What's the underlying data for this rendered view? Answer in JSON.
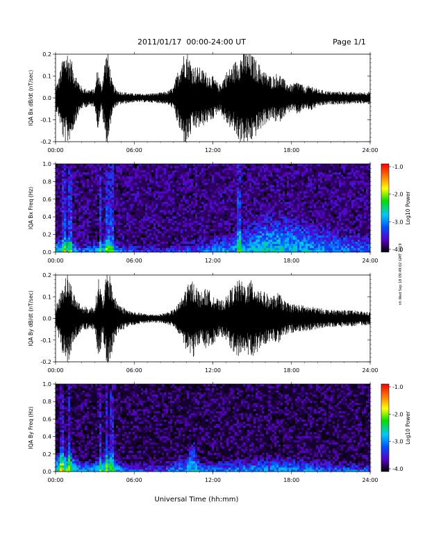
{
  "header": {
    "date_range": "2011/01/17  00:00-24:00 UT",
    "page": "Page 1/1"
  },
  "side_note": "nh Wed Sep 18 09:49:02 GMT 2019",
  "footer": {
    "xlabel": "Universal Time (hh:mm)"
  },
  "colors": {
    "trace": "#000000",
    "spec_background": "#1a0a3c",
    "colorbar": [
      "#ff0000",
      "#ff8000",
      "#ffff00",
      "#00e000",
      "#00c8ff",
      "#0050ff",
      "#5a00c8",
      "#000000"
    ]
  },
  "colorbar_ticks": [
    "-1.0",
    "-2.0",
    "-3.0",
    "-4.0"
  ],
  "colorbar_label": "Log10 Power",
  "chart_data": [
    {
      "type": "line",
      "ylabel": "IQA Bx dB/dt (nT/sec)",
      "ylim": [
        -0.2,
        0.2
      ],
      "yticks": [
        "0.2",
        "0.1",
        "0.0",
        "-0.1",
        "-0.2"
      ],
      "xticks": [
        "00:00",
        "06:00",
        "12:00",
        "18:00",
        "24:00"
      ],
      "xlim_hours": [
        0,
        24
      ],
      "series": [
        {
          "amplitude_envelope": {
            "x_hours": [
              0,
              0.2,
              0.6,
              0.9,
              1.3,
              1.6,
              2.0,
              2.5,
              3.0,
              3.2,
              3.5,
              3.8,
              4.0,
              4.3,
              4.6,
              5.0,
              5.5,
              6.0,
              7.0,
              8.0,
              8.5,
              9.0,
              9.3,
              9.7,
              10.0,
              10.5,
              11.0,
              11.5,
              12.0,
              12.5,
              13.0,
              13.5,
              14.0,
              14.5,
              15.0,
              15.5,
              16.0,
              16.5,
              17.0,
              17.5,
              18.0,
              18.5,
              19.0,
              19.5,
              20.0,
              21.0,
              22.0,
              23.0,
              24.0
            ],
            "half_range_nT_s": [
              0.06,
              0.08,
              0.2,
              0.22,
              0.16,
              0.1,
              0.05,
              0.04,
              0.04,
              0.15,
              0.05,
              0.2,
              0.22,
              0.08,
              0.04,
              0.03,
              0.025,
              0.02,
              0.02,
              0.025,
              0.03,
              0.05,
              0.12,
              0.2,
              0.22,
              0.15,
              0.14,
              0.12,
              0.1,
              0.06,
              0.12,
              0.15,
              0.2,
              0.22,
              0.2,
              0.16,
              0.12,
              0.1,
              0.12,
              0.08,
              0.06,
              0.08,
              0.05,
              0.06,
              0.04,
              0.03,
              0.03,
              0.025,
              0.03
            ]
          }
        }
      ]
    },
    {
      "type": "heatmap",
      "ylabel": "IQA Bx Freq (Hz)",
      "ylim": [
        0.0,
        1.0
      ],
      "yticks": [
        "1.0",
        "0.8",
        "0.6",
        "0.4",
        "0.2",
        "0.0"
      ],
      "xticks": [
        "00:00",
        "06:00",
        "12:00",
        "18:00",
        "24:00"
      ],
      "xlim_hours": [
        0,
        24
      ],
      "zlabel": "Log10 Power",
      "zlim": [
        -4.0,
        -1.0
      ],
      "background_log_power": -3.8,
      "low_freq_band": {
        "x_hours": [
          0,
          1,
          2,
          3,
          4,
          5,
          6,
          8,
          10,
          12,
          14,
          16,
          18,
          20,
          22,
          24
        ],
        "log_power_at_0Hz": [
          -2.6,
          -2.4,
          -3.0,
          -2.8,
          -2.5,
          -3.0,
          -3.2,
          -3.3,
          -3.2,
          -3.0,
          -2.8,
          -2.6,
          -2.7,
          -2.9,
          -3.0,
          -3.1
        ],
        "top_freq_Hz": [
          0.1,
          0.12,
          0.06,
          0.08,
          0.12,
          0.06,
          0.05,
          0.05,
          0.08,
          0.12,
          0.18,
          0.3,
          0.3,
          0.22,
          0.18,
          0.15
        ]
      },
      "vertical_streaks_hours": [
        0.6,
        1.1,
        3.4,
        4.0,
        4.3,
        14.0
      ]
    },
    {
      "type": "line",
      "ylabel": "IQA By dB/dt (nT/sec)",
      "ylim": [
        -0.2,
        0.2
      ],
      "yticks": [
        "0.2",
        "0.1",
        "0.0",
        "-0.1",
        "-0.2"
      ],
      "xticks": [
        "00:00",
        "06:00",
        "12:00",
        "18:00",
        "24:00"
      ],
      "xlim_hours": [
        0,
        24
      ],
      "series": [
        {
          "amplitude_envelope": {
            "x_hours": [
              0,
              0.3,
              0.6,
              0.9,
              1.2,
              1.5,
              2.0,
              2.5,
              3.0,
              3.3,
              3.6,
              3.9,
              4.2,
              4.5,
              5.0,
              5.5,
              6.0,
              7.0,
              8.0,
              9.0,
              9.5,
              10.0,
              10.5,
              11.0,
              11.5,
              12.0,
              12.5,
              13.0,
              13.5,
              14.0,
              14.5,
              15.0,
              15.5,
              16.0,
              16.5,
              17.0,
              17.5,
              18.0,
              19.0,
              20.0,
              21.0,
              22.0,
              23.0,
              24.0
            ],
            "half_range_nT_s": [
              0.05,
              0.1,
              0.18,
              0.22,
              0.16,
              0.1,
              0.06,
              0.05,
              0.06,
              0.2,
              0.08,
              0.22,
              0.2,
              0.1,
              0.06,
              0.04,
              0.03,
              0.02,
              0.02,
              0.04,
              0.08,
              0.15,
              0.18,
              0.12,
              0.14,
              0.12,
              0.08,
              0.1,
              0.15,
              0.18,
              0.16,
              0.18,
              0.15,
              0.12,
              0.1,
              0.12,
              0.08,
              0.07,
              0.06,
              0.05,
              0.04,
              0.04,
              0.035,
              0.03
            ]
          }
        }
      ]
    },
    {
      "type": "heatmap",
      "ylabel": "IQA By Freq (Hz)",
      "ylim": [
        0.0,
        1.0
      ],
      "yticks": [
        "1.0",
        "0.8",
        "0.6",
        "0.4",
        "0.2",
        "0.0"
      ],
      "xticks": [
        "00:00",
        "06:00",
        "12:00",
        "18:00",
        "24:00"
      ],
      "xlim_hours": [
        0,
        24
      ],
      "zlabel": "Log10 Power",
      "zlim": [
        -4.0,
        -1.0
      ],
      "background_log_power": -3.9,
      "low_freq_band": {
        "x_hours": [
          0,
          1,
          2,
          3,
          4,
          5,
          6,
          8,
          10,
          10.5,
          11,
          12,
          14,
          16,
          18,
          20,
          22,
          24
        ],
        "log_power_at_0Hz": [
          -2.4,
          -2.2,
          -2.8,
          -2.7,
          -2.5,
          -2.9,
          -3.1,
          -3.2,
          -2.8,
          -2.6,
          -2.9,
          -3.0,
          -2.9,
          -2.8,
          -2.9,
          -3.0,
          -3.1,
          -3.2
        ],
        "top_freq_Hz": [
          0.15,
          0.2,
          0.08,
          0.1,
          0.2,
          0.08,
          0.06,
          0.06,
          0.14,
          0.25,
          0.1,
          0.08,
          0.1,
          0.12,
          0.12,
          0.1,
          0.08,
          0.08
        ]
      },
      "vertical_streaks_hours": [
        0.5,
        1.0,
        3.4,
        3.9,
        4.3
      ]
    }
  ]
}
